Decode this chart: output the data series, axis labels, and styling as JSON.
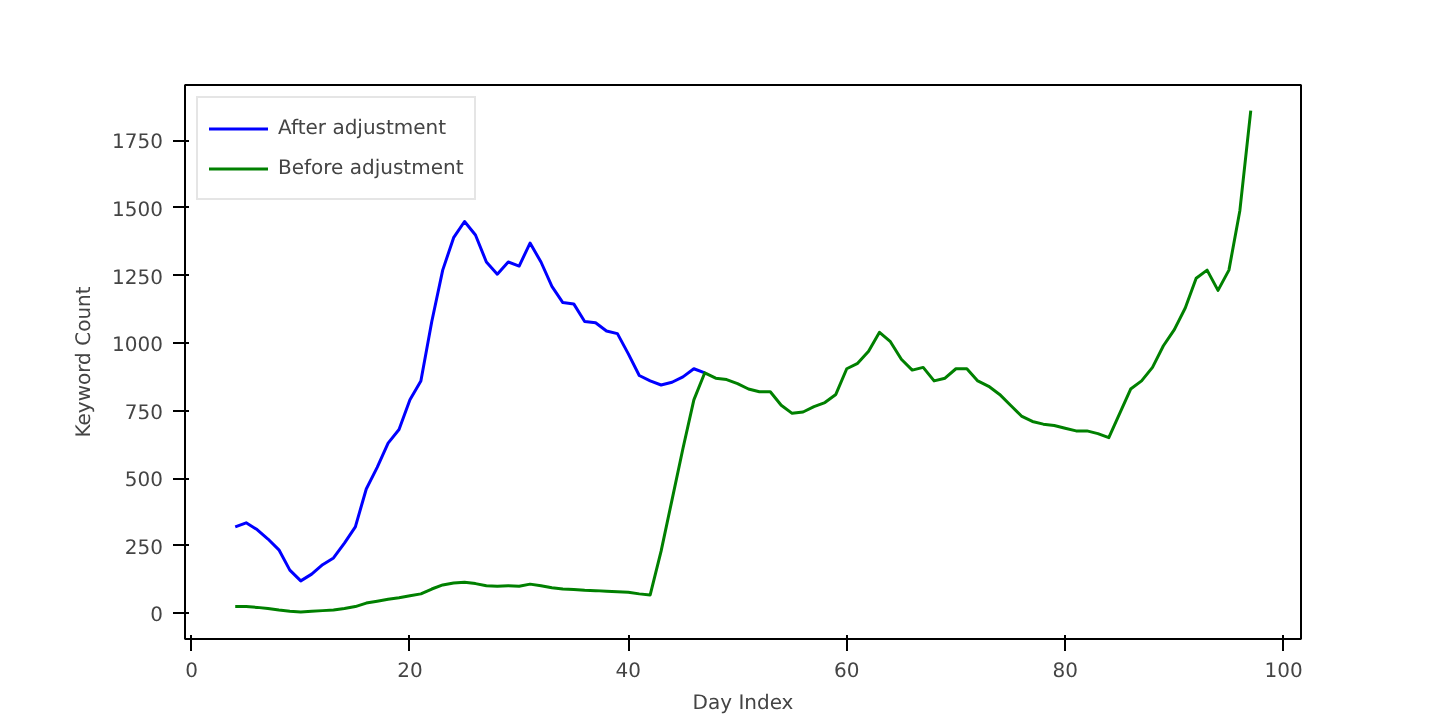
{
  "chart_data": {
    "type": "line",
    "xlabel": "Day Index",
    "ylabel": "Keyword Count",
    "legend": "top left",
    "grid": false,
    "line_style": "solid",
    "marker": "none",
    "x": [
      4,
      5,
      6,
      7,
      8,
      9,
      10,
      11,
      12,
      13,
      14,
      15,
      16,
      17,
      18,
      19,
      20,
      21,
      22,
      23,
      24,
      25,
      26,
      27,
      28,
      29,
      30,
      31,
      32,
      33,
      34,
      35,
      36,
      37,
      38,
      39,
      40,
      41,
      42,
      43,
      44,
      45,
      46,
      47,
      48,
      49,
      50,
      51,
      52,
      53,
      54,
      55,
      56,
      57,
      58,
      59,
      60,
      61,
      62,
      63,
      64,
      65,
      66,
      67,
      68,
      69,
      70,
      71,
      72,
      73,
      74,
      75,
      76,
      77,
      78,
      79,
      80,
      81,
      82,
      83,
      84,
      85,
      86,
      87,
      88,
      89,
      90,
      91,
      92,
      93,
      94,
      95,
      96,
      97
    ],
    "xlim": [
      -0.6,
      101.6
    ],
    "xticks": [
      0,
      20,
      40,
      60,
      80,
      100
    ],
    "ylim": [
      -95,
      1955
    ],
    "yticks": [
      0,
      250,
      500,
      750,
      1000,
      1250,
      1500,
      1750
    ],
    "series": [
      {
        "name": "After adjustment",
        "color": "#0000ff",
        "values": [
          320,
          335,
          310,
          275,
          235,
          160,
          120,
          145,
          180,
          205,
          260,
          320,
          460,
          540,
          630,
          680,
          790,
          860,
          1080,
          1270,
          1390,
          1450,
          1400,
          1300,
          1255,
          1300,
          1285,
          1370,
          1300,
          1210,
          1150,
          1145,
          1080,
          1075,
          1045,
          1035,
          960,
          880,
          860,
          845,
          855,
          875,
          905,
          890,
          null,
          null,
          null,
          null,
          null,
          null,
          null,
          null,
          null,
          null,
          null,
          null,
          null,
          null,
          null,
          null,
          null,
          null,
          null,
          null,
          null,
          null,
          null,
          null,
          null,
          null,
          null,
          null,
          null,
          null,
          null,
          null,
          null,
          null,
          null,
          null,
          null,
          null,
          null,
          null,
          null,
          null,
          null,
          null,
          null,
          null,
          null,
          null,
          null,
          null
        ]
      },
      {
        "name": "Before adjustment",
        "color": "#008000",
        "values": [
          25,
          25,
          22,
          18,
          12,
          8,
          5,
          8,
          10,
          12,
          18,
          25,
          38,
          45,
          52,
          58,
          65,
          72,
          90,
          105,
          112,
          115,
          110,
          102,
          100,
          102,
          100,
          108,
          102,
          95,
          90,
          88,
          85,
          84,
          82,
          80,
          78,
          72,
          68,
          230,
          420,
          610,
          790,
          890,
          870,
          865,
          850,
          830,
          820,
          820,
          770,
          740,
          745,
          765,
          780,
          810,
          905,
          925,
          970,
          1040,
          1005,
          940,
          900,
          910,
          860,
          870,
          905,
          905,
          860,
          840,
          810,
          770,
          730,
          710,
          700,
          695,
          685,
          675,
          675,
          665,
          650,
          740,
          830,
          860,
          910,
          990,
          1050,
          1130,
          1240,
          1270,
          1195,
          1270,
          1490,
          1860
        ]
      }
    ]
  }
}
